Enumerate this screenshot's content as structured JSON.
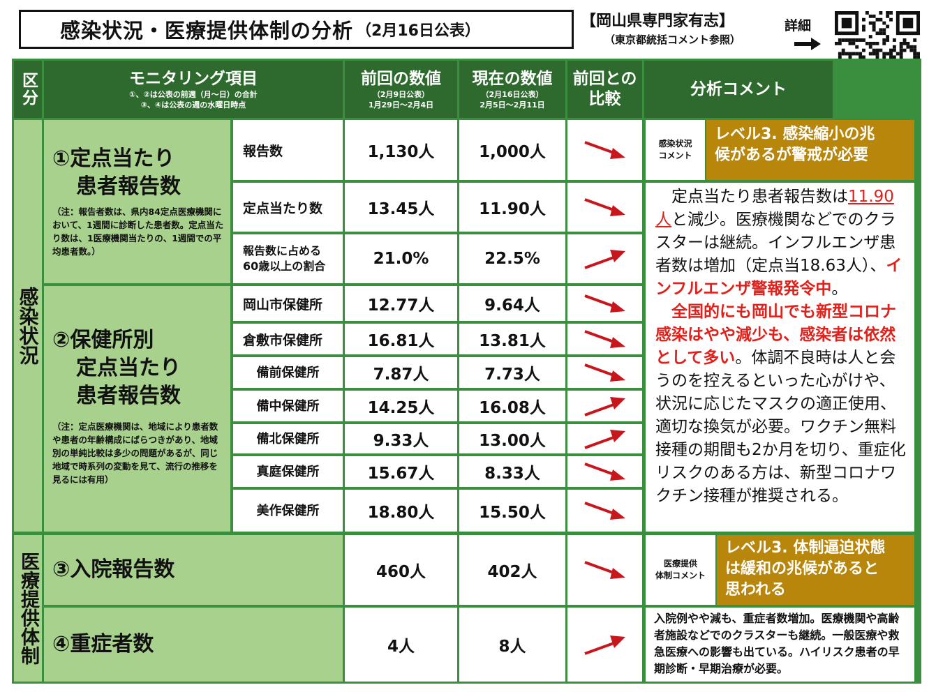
{
  "header": {
    "title": "感染状況・医療提供体制の分析",
    "date": "（2月16日公表）",
    "source_line1": "【岡山県専門家有志】",
    "source_line2": "（東京都統括コメント参照）",
    "detail_label": "詳細"
  },
  "table_header": {
    "category": "区分",
    "monitoring": "モニタリング項目",
    "monitoring_note1": "①、②は公表の前週（月～日）の合計",
    "monitoring_note2": "③、④は公表の週の水曜日時点",
    "prev": "前回の数値",
    "prev_date": "（2月9日公表）",
    "prev_range": "1月29日～2月4日",
    "curr": "現在の数値",
    "curr_date": "（2月16日公表）",
    "curr_range": "2月5日～2月11日",
    "compare": "前回との比較",
    "analysis": "分析コメント"
  },
  "section1": {
    "label": "感染状況",
    "item1_title_l1": "①定点当たり",
    "item1_title_l2": "患者報告数",
    "item1_note": "（注：報告者数は、県内84定点医療機関において、1週間に診断した患者数。定点当たり数は、1医療機関当たりの、1週間での平均患者数。）",
    "item2_title_l1": "②保健所別",
    "item2_title_l2": "定点当たり",
    "item2_title_l3": "患者報告数",
    "item2_note": "（注：定点医療機関は、地域により患者数や患者の年齢構成にばらつきがあり、地域別の単純比較は多少の問題があるが、同じ地域で時系列の変動を見て、流行の推移を見るには有用）",
    "rows": [
      {
        "label": "報告数",
        "prev": "1,130人",
        "curr": "1,000人",
        "trend": "down"
      },
      {
        "label": "定点当たり数",
        "prev": "13.45人",
        "curr": "11.90人",
        "trend": "down"
      },
      {
        "label": "報告数に占める60歳以上の割合",
        "label_l1": "報告数に占める",
        "label_l2": "60歳以上の割合",
        "prev": "21.0%",
        "curr": "22.5%",
        "trend": "up"
      },
      {
        "label": "岡山市保健所",
        "prev": "12.77人",
        "curr": "9.64人",
        "trend": "down"
      },
      {
        "label": "倉敷市保健所",
        "prev": "16.81人",
        "curr": "13.81人",
        "trend": "down"
      },
      {
        "label": "備前保健所",
        "prev": "7.87人",
        "curr": "7.73人",
        "trend": "down"
      },
      {
        "label": "備中保健所",
        "prev": "14.25人",
        "curr": "16.08人",
        "trend": "up"
      },
      {
        "label": "備北保健所",
        "prev": "9.33人",
        "curr": "13.00人",
        "trend": "up"
      },
      {
        "label": "真庭保健所",
        "prev": "15.67人",
        "curr": "8.33人",
        "trend": "down"
      },
      {
        "label": "美作保健所",
        "prev": "18.80人",
        "curr": "15.50人",
        "trend": "down"
      }
    ],
    "comment_label_l1": "感染状況",
    "comment_label_l2": "コメント",
    "level_l1": "レベル3. 感染縮小の兆",
    "level_l2": "候があるが警戒が必要",
    "comment": {
      "p1_a": "定点当たり患者報告数は",
      "p1_red1": "11.90",
      "p1_red2": "人",
      "p1_b": "と減少。医療機関などでのクラスターは継続。インフルエンザ患者数は増加（定点当18.63人）、",
      "p1_red3": "インフルエンザ警報発令中",
      "p1_c": "。",
      "p2_red": "全国的にも岡山でも新型コロナ感染はやや減少も、感染者は依然として多い",
      "p2_b": "。体調不良時は人と会うのを控えるといった心がけや、状況に応じたマスクの適正使用、適切な換気が必要。ワクチン無料接種の期間も2か月を切り、重症化リスクのある方は、新型コロナワクチン接種が推奨される。"
    }
  },
  "section2": {
    "label": "医療提供体制",
    "row3": {
      "title": "③入院報告数",
      "prev": "460人",
      "curr": "402人",
      "trend": "down"
    },
    "row4": {
      "title": "④重症者数",
      "prev": "4人",
      "curr": "8人",
      "trend": "up"
    },
    "comment_label_l1": "医療提供",
    "comment_label_l2": "体制コメント",
    "level_l1": "レベル3. 体制逼迫状態",
    "level_l2": "は緩和の兆候があると",
    "level_l3": "思われる",
    "comment": "入院例やや減も、重症者数増加。医療機関や高齢者施設などでのクラスターも継続。一般医療や救急医療への影響も出ている。ハイリスク患者の早期診断・早期治療が必要。"
  },
  "colors": {
    "header_green": "#2e6a2d",
    "light_green": "#a9d18e",
    "level_gold": "#b8860b",
    "arrow_red": "#c8161d",
    "text_red": "#e0201a"
  }
}
